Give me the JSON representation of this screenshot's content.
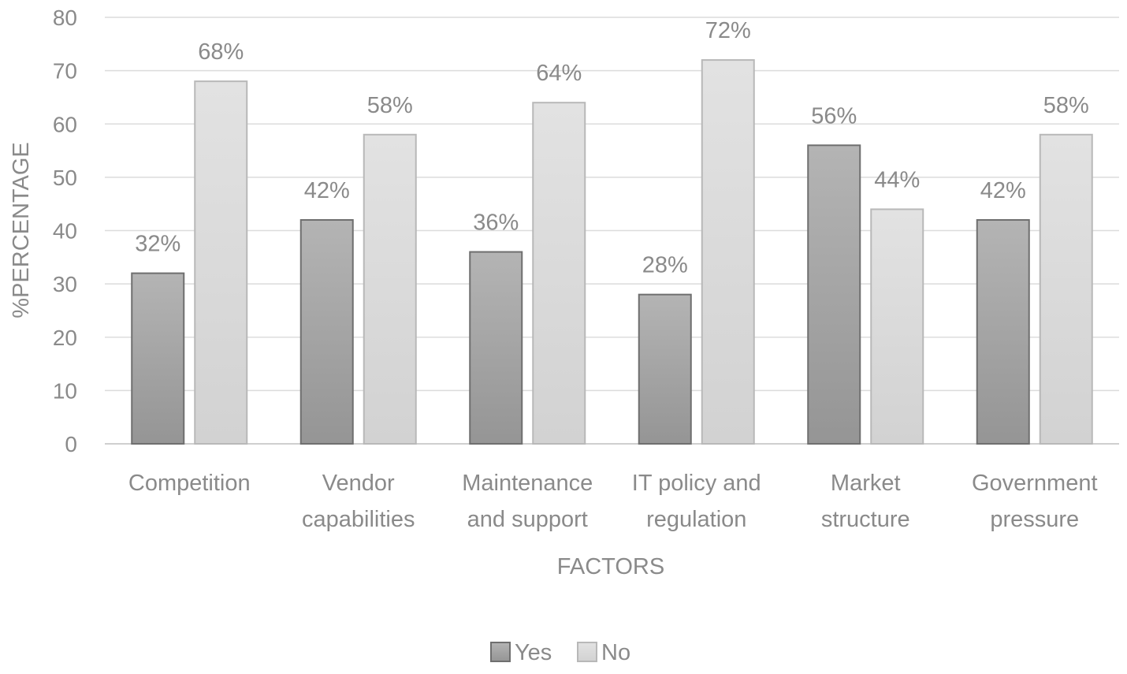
{
  "chart_data": {
    "type": "bar",
    "categories": [
      [
        "Competition"
      ],
      [
        "Vendor",
        "capabilities"
      ],
      [
        "Maintenance",
        "and support"
      ],
      [
        "IT policy and",
        "regulation"
      ],
      [
        "Market",
        "structure"
      ],
      [
        "Government",
        "pressure"
      ]
    ],
    "series": [
      {
        "name": "Yes",
        "values": [
          32,
          42,
          36,
          28,
          56,
          42
        ],
        "labels": [
          "32%",
          "42%",
          "36%",
          "28%",
          "56%",
          "42%"
        ],
        "color": "#a6a6a6"
      },
      {
        "name": "No",
        "values": [
          68,
          58,
          64,
          72,
          44,
          58
        ],
        "labels": [
          "68%",
          "58%",
          "64%",
          "72%",
          "44%",
          "58%"
        ],
        "color": "#d9d9d9"
      }
    ],
    "xlabel": "FACTORS",
    "ylabel": "%PERCENTAGE",
    "ylim": [
      0,
      80
    ],
    "yticks": [
      0,
      10,
      20,
      30,
      40,
      50,
      60,
      70,
      80
    ],
    "grid": true,
    "legend_position": "bottom"
  }
}
